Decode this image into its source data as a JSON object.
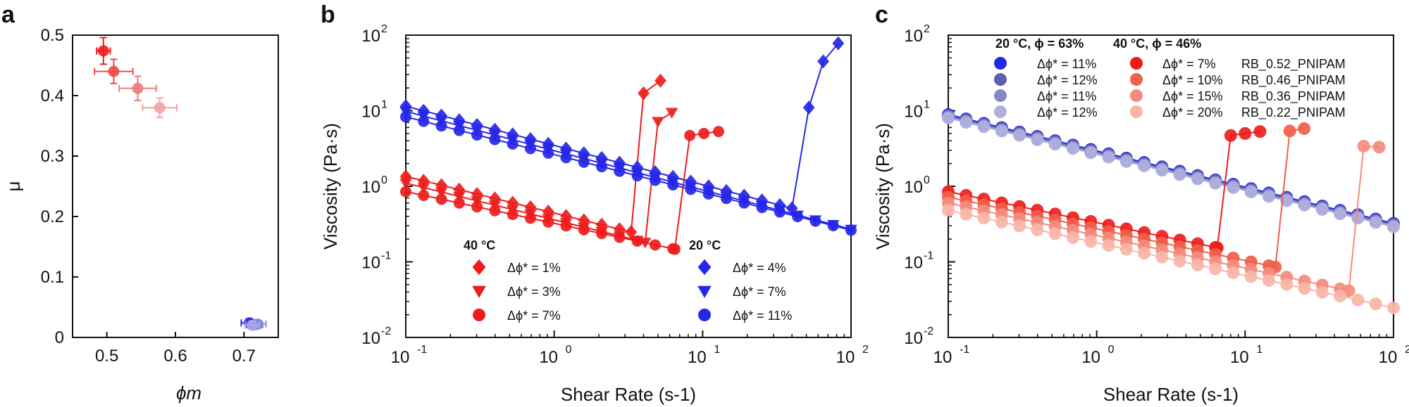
{
  "chart_data": [
    {
      "panel": "a",
      "type": "scatter",
      "xlabel": "ϕm",
      "ylabel": "μ",
      "xlim": [
        0.45,
        0.75
      ],
      "ylim": [
        0,
        0.5
      ],
      "xticks": [
        0.5,
        0.6,
        0.7
      ],
      "yticks": [
        0,
        0.1,
        0.2,
        0.3,
        0.4,
        0.5
      ],
      "xtick_labels": [
        "0.5",
        "0.6",
        "0.7"
      ],
      "ytick_labels": [
        "0",
        "0.1",
        "0.2",
        "0.3",
        "0.4",
        "0.5"
      ],
      "points": [
        {
          "x": 0.495,
          "y": 0.474,
          "xerr": 0.01,
          "yerr": 0.022,
          "color": "#ee1c1c"
        },
        {
          "x": 0.51,
          "y": 0.44,
          "xerr": 0.028,
          "yerr": 0.02,
          "color": "#ef4a4a"
        },
        {
          "x": 0.545,
          "y": 0.412,
          "xerr": 0.027,
          "yerr": 0.02,
          "color": "#f07a7a"
        },
        {
          "x": 0.577,
          "y": 0.38,
          "xerr": 0.025,
          "yerr": 0.016,
          "color": "#f4a3a3"
        },
        {
          "x": 0.708,
          "y": 0.024,
          "xerr": 0.012,
          "yerr": 0.007,
          "color": "#2626e8"
        },
        {
          "x": 0.715,
          "y": 0.021,
          "xerr": 0.012,
          "yerr": 0.006,
          "color": "#5a5ac8"
        },
        {
          "x": 0.72,
          "y": 0.022,
          "xerr": 0.012,
          "yerr": 0.006,
          "color": "#8585d8"
        },
        {
          "x": 0.712,
          "y": 0.02,
          "xerr": 0.01,
          "yerr": 0.006,
          "color": "#a6a6e6"
        }
      ]
    },
    {
      "panel": "b",
      "type": "line",
      "xscale": "log",
      "yscale": "log",
      "xlabel": "Shear Rate (s-1)",
      "ylabel": "Viscosity (Pa·s)",
      "xlim": [
        0.1,
        100
      ],
      "ylim": [
        0.01,
        100
      ],
      "xtick_labels": [
        "10",
        "10",
        "10",
        "10"
      ],
      "xtick_exponents": [
        "-1",
        "0",
        "1",
        "2"
      ],
      "ytick_labels": [
        "10",
        "10",
        "10",
        "10",
        "10"
      ],
      "ytick_exponents": [
        "-2",
        "-1",
        "0",
        "1",
        "2"
      ],
      "legend_groups": [
        {
          "title": "40 °C",
          "entries": [
            "Δϕ* = 1%",
            "Δϕ* = 3%",
            "Δϕ* = 7%"
          ]
        },
        {
          "title": "20 °C",
          "entries": [
            "Δϕ* = 4%",
            "Δϕ* = 7%",
            "Δϕ* = 11%"
          ]
        }
      ],
      "series": [
        {
          "name": "40 °C Δϕ* = 1%",
          "marker": "diamond",
          "color": "#ee1c1c",
          "y0": 1.35,
          "slope": -0.485,
          "x_jump": 3.3,
          "jump_values": [
            [
              4.0,
              17
            ],
            [
              5.2,
              25
            ]
          ]
        },
        {
          "name": "40 °C Δϕ* = 3%",
          "marker": "triangle",
          "color": "#ee1c1c",
          "y0": 1.1,
          "slope": -0.485,
          "x_jump": 4.1,
          "jump_values": [
            [
              5.0,
              7.2
            ],
            [
              6.2,
              9.5
            ]
          ]
        },
        {
          "name": "40 °C Δϕ* = 7%",
          "marker": "circle",
          "color": "#ee1c1c",
          "y0": 0.85,
          "slope": -0.42,
          "x_jump": 6.5,
          "jump_values": [
            [
              8.2,
              4.7
            ],
            [
              10.2,
              5.0
            ],
            [
              12.8,
              5.3
            ]
          ]
        },
        {
          "name": "20 °C Δϕ* = 4%",
          "marker": "diamond",
          "color": "#2626e8",
          "y0": 11.5,
          "slope": -0.52,
          "x_jump": 40,
          "jump_values": [
            [
              52,
              11
            ],
            [
              65,
              45
            ],
            [
              82,
              78
            ]
          ]
        },
        {
          "name": "20 °C Δϕ* = 7%",
          "marker": "triangle",
          "color": "#2626e8",
          "y0": 9.8,
          "slope": -0.52,
          "x_jump": 100,
          "jump_values": []
        },
        {
          "name": "20 °C Δϕ* = 11%",
          "marker": "circle",
          "color": "#2626e8",
          "y0": 8.3,
          "slope": -0.5,
          "x_jump": 100,
          "jump_values": []
        }
      ]
    },
    {
      "panel": "c",
      "type": "line",
      "xscale": "log",
      "yscale": "log",
      "xlabel": "Shear Rate (s-1)",
      "ylabel": "Viscosity (Pa·s)",
      "xlim": [
        0.1,
        100
      ],
      "ylim": [
        0.01,
        100
      ],
      "xtick_labels": [
        "10",
        "10",
        "10",
        "10"
      ],
      "xtick_exponents": [
        "-1",
        "0",
        "1",
        "2"
      ],
      "ytick_labels": [
        "10",
        "10",
        "10",
        "10",
        "10"
      ],
      "ytick_exponents": [
        "-2",
        "-1",
        "0",
        "1",
        "2"
      ],
      "legend_headers": [
        "20 °C, ϕ = 63%",
        "40 °C, ϕ = 46%"
      ],
      "legend_rows": [
        {
          "left": "Δϕ* = 11%",
          "right": "Δϕ* = 7%",
          "sample": "RB_0.52_PNIPAM",
          "left_color": "#2626e8",
          "right_color": "#ee1c1c"
        },
        {
          "left": "Δϕ* = 12%",
          "right": "Δϕ* = 10%",
          "sample": "RB_0.46_PNIPAM",
          "left_color": "#5a62b0",
          "right_color": "#f0604a"
        },
        {
          "left": "Δϕ* = 11%",
          "right": "Δϕ* = 15%",
          "sample": "RB_0.36_PNIPAM",
          "left_color": "#8787c8",
          "right_color": "#f38c7e"
        },
        {
          "left": "Δϕ* = 12%",
          "right": "Δϕ* = 20%",
          "sample": "RB_0.22_PNIPAM",
          "left_color": "#b0b0de",
          "right_color": "#f7b6a8"
        }
      ],
      "series": [
        {
          "name": "20 °C RB_0.52_PNIPAM",
          "color": "#2626e8",
          "y0": 8.9,
          "slope": -0.48,
          "x_jump": 100,
          "jump_values": []
        },
        {
          "name": "20 °C RB_0.46_PNIPAM",
          "color": "#5a62b0",
          "y0": 8.6,
          "slope": -0.48,
          "x_jump": 100,
          "jump_values": []
        },
        {
          "name": "20 °C RB_0.36_PNIPAM",
          "color": "#8787c8",
          "y0": 8.3,
          "slope": -0.48,
          "x_jump": 100,
          "jump_values": []
        },
        {
          "name": "20 °C RB_0.22_PNIPAM",
          "color": "#b0b0de",
          "y0": 8.0,
          "slope": -0.48,
          "x_jump": 100,
          "jump_values": []
        },
        {
          "name": "40 °C RB_0.52_PNIPAM",
          "color": "#ee1c1c",
          "y0": 0.85,
          "slope": -0.41,
          "x_jump": 6.5,
          "jump_values": [
            [
              8.0,
              4.7
            ],
            [
              10.0,
              5.0
            ],
            [
              12.6,
              5.3
            ]
          ]
        },
        {
          "name": "40 °C RB_0.46_PNIPAM",
          "color": "#f0604a",
          "y0": 0.72,
          "slope": -0.42,
          "x_jump": 16,
          "jump_values": [
            [
              20,
              5.4
            ],
            [
              25,
              5.8
            ]
          ]
        },
        {
          "name": "40 °C RB_0.36_PNIPAM",
          "color": "#f38c7e",
          "y0": 0.6,
          "slope": -0.43,
          "x_jump": 50,
          "jump_values": [
            [
              63,
              3.4
            ],
            [
              80,
              3.3
            ]
          ]
        },
        {
          "name": "40 °C RB_0.22_PNIPAM",
          "color": "#f7b6a8",
          "y0": 0.48,
          "slope": -0.43,
          "x_jump": 100,
          "jump_values": []
        }
      ]
    }
  ],
  "panel_letters": [
    "a",
    "b",
    "c"
  ]
}
